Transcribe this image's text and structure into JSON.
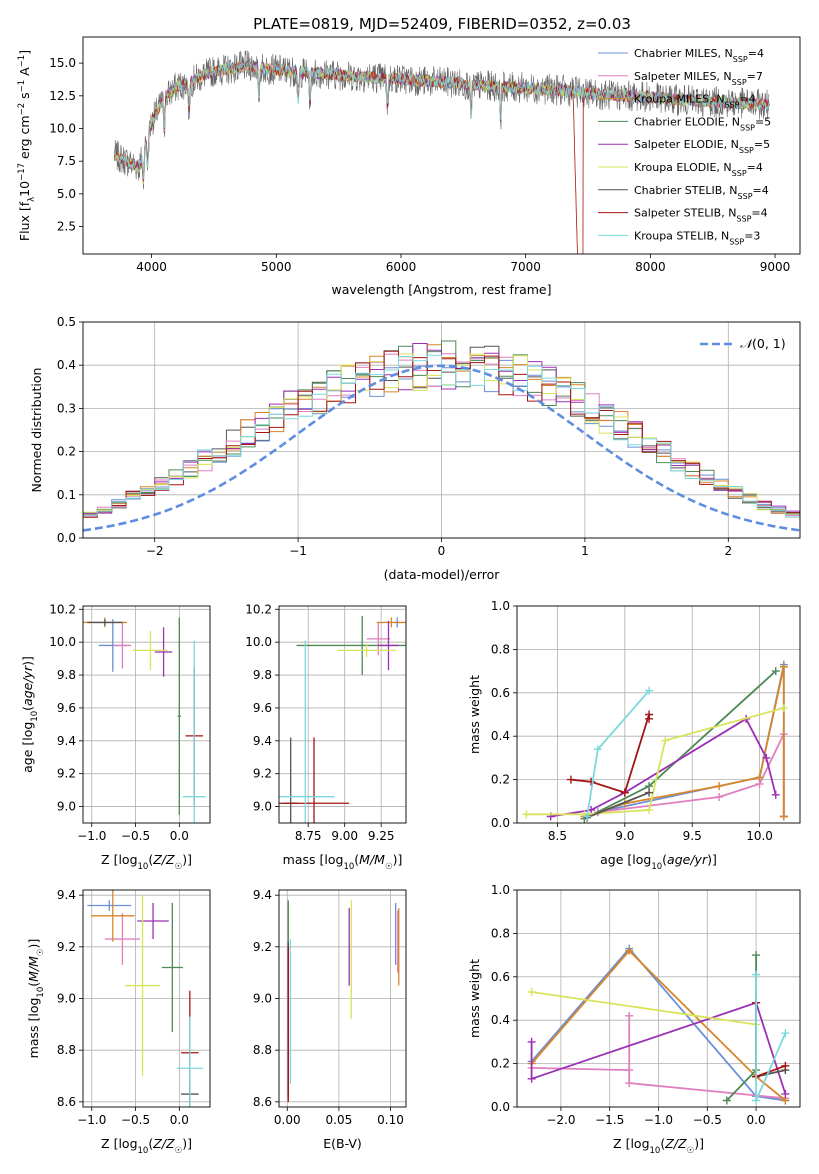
{
  "page": {
    "title": "PLATE=0819, MJD=52409, FIBERID=0352, z=0.03"
  },
  "colors": [
    "#6b8fd6",
    "#e07fbf",
    "#d7862a",
    "#4d8a55",
    "#9b30b5",
    "#d8e45a",
    "#555555",
    "#a31414",
    "#7dd8dd"
  ],
  "chart_data": [
    {
      "id": "spectrum",
      "type": "line",
      "title": "PLATE=0819, MJD=52409, FIBERID=0352, z=0.03",
      "xlabel": "wavelength [Angstrom, rest frame]",
      "ylabel": "Flux [f_λ 10^-17 erg cm^-2 s^-1 A^-1]",
      "xlim": [
        3450,
        9200
      ],
      "ylim": [
        0.4,
        17.0
      ],
      "xticks": [
        "4000",
        "5000",
        "6000",
        "7000",
        "8000",
        "9000"
      ],
      "yticks": [
        "2.5",
        "5.0",
        "7.5",
        "10.0",
        "12.5",
        "15.0"
      ],
      "grid": false,
      "legend_position": "top-right",
      "series": [
        {
          "name": "Chabrier MILES, N_SSP=4"
        },
        {
          "name": "Salpeter MILES, N_SSP=7"
        },
        {
          "name": "Kroupa MILES, N_SSP=4"
        },
        {
          "name": "Chabrier ELODIE, N_SSP=5"
        },
        {
          "name": "Salpeter ELODIE, N_SSP=5"
        },
        {
          "name": "Kroupa ELODIE, N_SSP=4"
        },
        {
          "name": "Chabrier STELIB, N_SSP=4"
        },
        {
          "name": "Salpeter STELIB, N_SSP=4"
        },
        {
          "name": "Kroupa STELIB, N_SSP=3"
        }
      ],
      "continuum": {
        "x": [
          3700,
          3800,
          3900,
          4000,
          4100,
          4200,
          4300,
          4400,
          4500,
          4600,
          4700,
          4800,
          4900,
          5000,
          5200,
          5400,
          5600,
          5800,
          6000,
          6200,
          6400,
          6600,
          6800,
          7000,
          7200,
          7400,
          7600,
          7800,
          8000,
          8200,
          8400,
          8600,
          8800,
          8950
        ],
        "y": [
          8.0,
          7.5,
          7.0,
          10.5,
          12.3,
          13.2,
          13.5,
          14.0,
          14.4,
          14.5,
          14.7,
          14.8,
          14.6,
          14.5,
          14.3,
          14.2,
          14.0,
          13.9,
          13.8,
          13.6,
          13.5,
          13.3,
          13.2,
          13.1,
          13.0,
          12.8,
          12.6,
          12.5,
          12.4,
          12.2,
          12.1,
          12.0,
          11.9,
          11.8
        ]
      },
      "absorption_lines": [
        3934,
        3969,
        4102,
        4300,
        4861,
        5175,
        5270,
        5892,
        6563,
        6800
      ]
    },
    {
      "id": "residuals",
      "type": "line",
      "xlabel": "(data-model)/error",
      "ylabel": "Normed distribution",
      "xlim": [
        -2.5,
        2.5
      ],
      "ylim": [
        0.0,
        0.5
      ],
      "xticks": [
        "−2",
        "−1",
        "0",
        "1",
        "2"
      ],
      "yticks": [
        "0.0",
        "0.1",
        "0.2",
        "0.3",
        "0.4",
        "0.5"
      ],
      "grid": true,
      "legend_position": "top-right",
      "reference_curve": {
        "name": "N(0, 1)",
        "mean": 0,
        "sigma": 1
      },
      "bin_width": 0.1,
      "histogram_level": [
        0.02,
        0.025,
        0.03,
        0.035,
        0.045,
        0.055,
        0.065,
        0.08,
        0.095,
        0.11,
        0.125,
        0.14,
        0.16,
        0.18,
        0.2,
        0.22,
        0.24,
        0.26,
        0.28,
        0.3,
        0.315,
        0.33,
        0.345,
        0.36,
        0.37,
        0.38,
        0.385,
        0.39,
        0.395,
        0.4,
        0.4,
        0.4,
        0.395,
        0.39,
        0.385,
        0.375,
        0.36,
        0.35,
        0.335,
        0.32,
        0.3,
        0.28,
        0.26,
        0.24,
        0.22,
        0.2,
        0.18,
        0.16,
        0.14,
        0.12,
        0.105,
        0.09,
        0.075,
        0.065,
        0.055,
        0.045,
        0.04,
        0.035,
        0.03,
        0.025
      ]
    },
    {
      "id": "age-vs-Z",
      "type": "scatter",
      "xlabel": "Z [log10(Z/Z☉)]",
      "ylabel": "age  [log10(age/yr)]",
      "xlim": [
        -1.1,
        0.35
      ],
      "ylim": [
        8.9,
        10.22
      ],
      "xticks": [
        "−1.0",
        "−0.5",
        "0.0"
      ],
      "yticks": [
        "9.0",
        "9.2",
        "9.4",
        "9.6",
        "9.8",
        "10.0",
        "10.2"
      ],
      "grid": true,
      "points": [
        {
          "x": -0.76,
          "y": 9.98,
          "xerr": 0.16,
          "yerr": 0.16,
          "color": 0
        },
        {
          "x": -0.65,
          "y": 9.98,
          "xerr": 0.1,
          "yerr": 0.14,
          "color": 1
        },
        {
          "x": -0.85,
          "y": 10.12,
          "xerr": 0.25,
          "yerr": 0.03,
          "color": 2
        },
        {
          "x": 0.0,
          "y": 9.55,
          "xerr": 0.02,
          "yerr": 0.6,
          "color": 3
        },
        {
          "x": -0.18,
          "y": 9.94,
          "xerr": 0.1,
          "yerr": 0.15,
          "color": 4
        },
        {
          "x": -0.33,
          "y": 9.95,
          "xerr": 0.2,
          "yerr": 0.12,
          "color": 5
        },
        {
          "x": -0.85,
          "y": 10.12,
          "xerr": 0.2,
          "yerr": 0.02,
          "color": 6
        },
        {
          "x": 0.17,
          "y": 9.43,
          "xerr": 0.1,
          "yerr": 0.42,
          "color": 7
        },
        {
          "x": 0.17,
          "y": 9.06,
          "xerr": 0.13,
          "yerr": 0.95,
          "color": 8
        }
      ]
    },
    {
      "id": "age-vs-mass",
      "type": "scatter",
      "xlabel": "mass [log10(M/M☉)]",
      "ylabel": "",
      "xlim": [
        8.55,
        9.42
      ],
      "ylim": [
        8.9,
        10.22
      ],
      "xticks": [
        "8.75",
        "9.00",
        "9.25"
      ],
      "yticks": [
        "9.0",
        "9.2",
        "9.4",
        "9.6",
        "9.8",
        "10.0",
        "10.2"
      ],
      "grid": true,
      "points": [
        {
          "x": 9.36,
          "y": 10.12,
          "xerr": 0.02,
          "yerr": 0.03,
          "color": 0
        },
        {
          "x": 9.23,
          "y": 10.02,
          "xerr": 0.08,
          "yerr": 0.1,
          "color": 1
        },
        {
          "x": 9.32,
          "y": 10.12,
          "xerr": 0.1,
          "yerr": 0.03,
          "color": 2
        },
        {
          "x": 9.12,
          "y": 9.98,
          "xerr": 0.45,
          "yerr": 0.18,
          "color": 3
        },
        {
          "x": 9.3,
          "y": 9.98,
          "xerr": 0.07,
          "yerr": 0.15,
          "color": 4
        },
        {
          "x": 9.15,
          "y": 9.95,
          "xerr": 0.2,
          "yerr": 0.04,
          "color": 5
        },
        {
          "x": 8.63,
          "y": 9.02,
          "xerr": 0.05,
          "yerr": 0.4,
          "color": 6
        },
        {
          "x": 8.79,
          "y": 9.02,
          "xerr": 0.24,
          "yerr": 0.4,
          "color": 7
        },
        {
          "x": 8.73,
          "y": 9.06,
          "xerr": 0.2,
          "yerr": 0.95,
          "color": 8
        }
      ]
    },
    {
      "id": "weight-vs-age",
      "type": "line",
      "xlabel": "age  [log10(age/yr)]",
      "ylabel": "mass weight",
      "xlim": [
        8.2,
        10.3
      ],
      "ylim": [
        0.0,
        1.0
      ],
      "xticks": [
        "8.5",
        "9.0",
        "9.5",
        "10.0"
      ],
      "yticks": [
        "0.0",
        "0.2",
        "0.4",
        "0.6",
        "0.8",
        "1.0"
      ],
      "grid": true,
      "series": [
        {
          "color": 0,
          "x": [
            8.8,
            10.0,
            10.18,
            10.18
          ],
          "y": [
            0.05,
            0.21,
            0.73,
            0.03
          ]
        },
        {
          "color": 1,
          "x": [
            8.8,
            9.7,
            10.0,
            10.18,
            10.18
          ],
          "y": [
            0.05,
            0.12,
            0.18,
            0.41,
            0.03
          ]
        },
        {
          "color": 2,
          "x": [
            8.7,
            9.0,
            9.7,
            10.0,
            10.18,
            10.18
          ],
          "y": [
            0.03,
            0.09,
            0.17,
            0.21,
            0.72,
            0.03
          ]
        },
        {
          "color": 3,
          "x": [
            8.7,
            9.18,
            10.12
          ],
          "y": [
            0.02,
            0.17,
            0.7
          ]
        },
        {
          "color": 4,
          "x": [
            8.45,
            8.75,
            9.0,
            9.9,
            10.05,
            10.12
          ],
          "y": [
            0.03,
            0.06,
            0.14,
            0.48,
            0.3,
            0.13
          ]
        },
        {
          "color": 5,
          "x": [
            8.27,
            8.7,
            9.18,
            9.3,
            10.18
          ],
          "y": [
            0.04,
            0.04,
            0.06,
            0.38,
            0.53
          ]
        },
        {
          "color": 6,
          "x": [
            8.72,
            9.18
          ],
          "y": [
            0.025,
            0.14
          ]
        },
        {
          "color": 7,
          "x": [
            8.6,
            8.75,
            9.0,
            9.18,
            9.18
          ],
          "y": [
            0.2,
            0.19,
            0.14,
            0.5,
            0.48
          ]
        },
        {
          "color": 8,
          "x": [
            8.72,
            8.8,
            9.18
          ],
          "y": [
            0.03,
            0.34,
            0.61
          ]
        }
      ]
    },
    {
      "id": "mass-vs-Z",
      "type": "scatter",
      "xlabel": "Z [log10(Z/Z☉)]",
      "ylabel": "mass [log10(M/M☉)]",
      "xlim": [
        -1.1,
        0.35
      ],
      "ylim": [
        8.58,
        9.42
      ],
      "xticks": [
        "−1.0",
        "−0.5",
        "0.0"
      ],
      "yticks": [
        "8.6",
        "8.8",
        "9.0",
        "9.2",
        "9.4"
      ],
      "grid": true,
      "points": [
        {
          "x": -0.8,
          "y": 9.36,
          "xerr": 0.25,
          "yerr": 0.02,
          "color": 0
        },
        {
          "x": -0.65,
          "y": 9.23,
          "xerr": 0.2,
          "yerr": 0.1,
          "color": 1
        },
        {
          "x": -0.76,
          "y": 9.32,
          "xerr": 0.25,
          "yerr": 0.1,
          "color": 2
        },
        {
          "x": -0.08,
          "y": 9.12,
          "xerr": 0.12,
          "yerr": 0.25,
          "color": 3
        },
        {
          "x": -0.3,
          "y": 9.3,
          "xerr": 0.18,
          "yerr": 0.07,
          "color": 4
        },
        {
          "x": -0.42,
          "y": 9.05,
          "xerr": 0.2,
          "yerr": 0.35,
          "color": 5
        },
        {
          "x": 0.12,
          "y": 8.63,
          "xerr": 0.1,
          "yerr": 0.05,
          "color": 6
        },
        {
          "x": 0.12,
          "y": 8.79,
          "xerr": 0.1,
          "yerr": 0.24,
          "color": 7
        },
        {
          "x": 0.12,
          "y": 8.73,
          "xerr": 0.15,
          "yerr": 0.2,
          "color": 8
        }
      ]
    },
    {
      "id": "mass-vs-ebv",
      "type": "scatter",
      "xlabel": "E(B-V)",
      "ylabel": "",
      "xlim": [
        -0.008,
        0.115
      ],
      "ylim": [
        8.58,
        9.42
      ],
      "xticks": [
        "0.00",
        "0.05",
        "0.10"
      ],
      "yticks": [
        "8.6",
        "8.8",
        "9.0",
        "9.2",
        "9.4"
      ],
      "grid": true,
      "points": [
        {
          "x": 0.105,
          "y": 9.25,
          "xerr": 0,
          "yerr": 0.12,
          "color": 0
        },
        {
          "x": 0.107,
          "y": 9.22,
          "xerr": 0,
          "yerr": 0.12,
          "color": 1
        },
        {
          "x": 0.108,
          "y": 9.2,
          "xerr": 0,
          "yerr": 0.15,
          "color": 2
        },
        {
          "x": 0.001,
          "y": 9.12,
          "xerr": 0,
          "yerr": 0.26,
          "color": 3
        },
        {
          "x": 0.06,
          "y": 9.2,
          "xerr": 0,
          "yerr": 0.15,
          "color": 4
        },
        {
          "x": 0.062,
          "y": 9.15,
          "xerr": 0,
          "yerr": 0.23,
          "color": 5
        },
        {
          "x": 0.001,
          "y": 8.92,
          "xerr": 0,
          "yerr": 0.3,
          "color": 6
        },
        {
          "x": 0.001,
          "y": 8.9,
          "xerr": 0,
          "yerr": 0.3,
          "color": 7
        },
        {
          "x": 0.003,
          "y": 8.95,
          "xerr": 0,
          "yerr": 0.28,
          "color": 8
        }
      ]
    },
    {
      "id": "weight-vs-Z",
      "type": "line",
      "xlabel": "Z [log10(Z/Z☉)]",
      "ylabel": "mass weight",
      "xlim": [
        -2.45,
        0.45
      ],
      "ylim": [
        0.0,
        1.0
      ],
      "xticks": [
        "−2.0",
        "−1.5",
        "−1.0",
        "−0.5",
        "0.0"
      ],
      "yticks": [
        "0.0",
        "0.2",
        "0.4",
        "0.6",
        "0.8",
        "1.0"
      ],
      "grid": true,
      "series": [
        {
          "color": 0,
          "x": [
            -2.3,
            -1.3,
            0.0,
            0.3
          ],
          "y": [
            0.21,
            0.73,
            0.05,
            0.03
          ]
        },
        {
          "color": 1,
          "x": [
            -2.3,
            -1.3,
            -1.3,
            -1.3,
            0.3
          ],
          "y": [
            0.18,
            0.17,
            0.42,
            0.11,
            0.04
          ]
        },
        {
          "color": 2,
          "x": [
            -2.3,
            -1.3,
            0.0,
            0.3
          ],
          "y": [
            0.2,
            0.72,
            0.14,
            0.03
          ]
        },
        {
          "color": 3,
          "x": [
            -0.3,
            0.0,
            0.0
          ],
          "y": [
            0.03,
            0.17,
            0.7
          ]
        },
        {
          "color": 4,
          "x": [
            -2.3,
            -2.3,
            0.0,
            0.3
          ],
          "y": [
            0.3,
            0.13,
            0.48,
            0.06
          ]
        },
        {
          "color": 5,
          "x": [
            -2.3,
            0.0
          ],
          "y": [
            0.53,
            0.38
          ]
        },
        {
          "color": 6,
          "x": [
            0.0,
            0.3
          ],
          "y": [
            0.14,
            0.17
          ]
        },
        {
          "color": 7,
          "x": [
            0.0,
            0.0,
            0.3
          ],
          "y": [
            0.48,
            0.14,
            0.19
          ]
        },
        {
          "color": 8,
          "x": [
            0.0,
            0.0,
            0.3
          ],
          "y": [
            0.61,
            0.03,
            0.34
          ]
        }
      ]
    }
  ]
}
